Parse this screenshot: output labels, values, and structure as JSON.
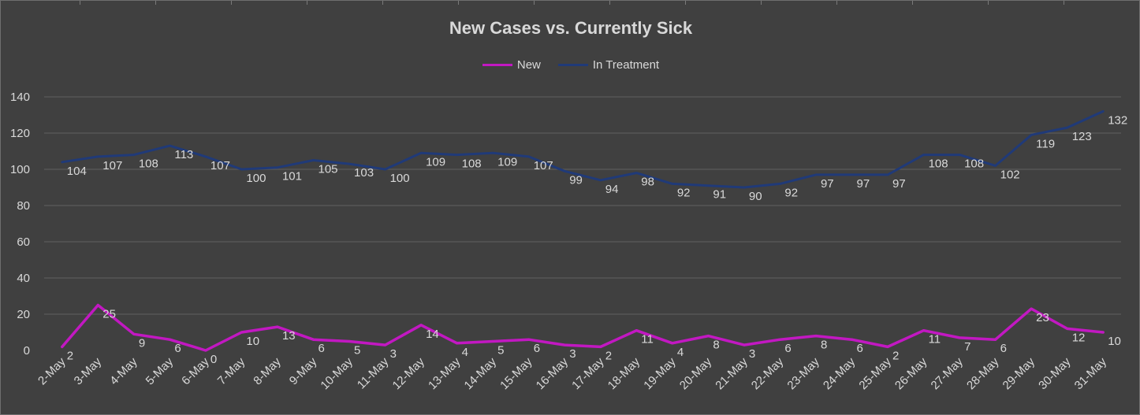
{
  "chart_data": {
    "type": "line",
    "title": "New Cases vs. Currently Sick",
    "xlabel": "",
    "ylabel": "",
    "ylim": [
      0,
      140
    ],
    "yticks": [
      0,
      20,
      40,
      60,
      80,
      100,
      120,
      140
    ],
    "grid": true,
    "legend_position": "top",
    "categories": [
      "2-May",
      "3-May",
      "4-May",
      "5-May",
      "6-May",
      "7-May",
      "8-May",
      "9-May",
      "10-May",
      "11-May",
      "12-May",
      "13-May",
      "14-May",
      "15-May",
      "16-May",
      "17-May",
      "18-May",
      "19-May",
      "20-May",
      "21-May",
      "22-May",
      "23-May",
      "24-May",
      "25-May",
      "26-May",
      "27-May",
      "28-May",
      "29-May",
      "30-May",
      "31-May"
    ],
    "series": [
      {
        "name": "New",
        "color": "#c218c2",
        "values": [
          2,
          25,
          9,
          6,
          0,
          10,
          13,
          6,
          5,
          3,
          14,
          4,
          5,
          6,
          3,
          2,
          11,
          4,
          8,
          3,
          6,
          8,
          6,
          2,
          11,
          7,
          6,
          23,
          12,
          10
        ]
      },
      {
        "name": "In Treatment",
        "color": "#203a78",
        "values": [
          104,
          107,
          108,
          113,
          107,
          100,
          101,
          105,
          103,
          100,
          109,
          108,
          109,
          107,
          99,
          94,
          98,
          92,
          91,
          90,
          92,
          97,
          97,
          97,
          108,
          108,
          102,
          119,
          123,
          132
        ]
      }
    ]
  },
  "colors": {
    "background": "#404040",
    "text": "#d9d9d9",
    "gridline": "#5a5a5a"
  }
}
